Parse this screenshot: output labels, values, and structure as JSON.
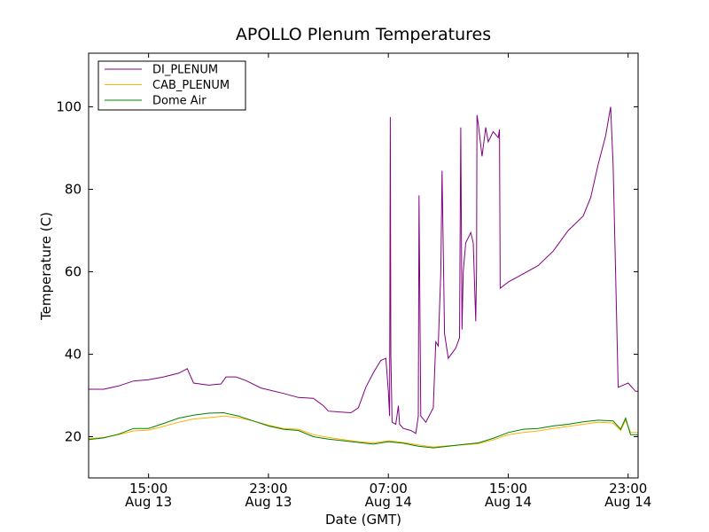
{
  "chart_data": {
    "type": "line",
    "title": "APOLLO Plenum Temperatures",
    "xlabel": "Date (GMT)",
    "ylabel": "Temperature (C)",
    "ylim": [
      10,
      113
    ],
    "xlim": [
      "Aug 13 11:00",
      "Aug 14 23:40"
    ],
    "grid": false,
    "legend_position": "upper-left",
    "yticks": [
      20,
      40,
      60,
      80,
      100
    ],
    "xticks": [
      {
        "x": "Aug 13 15:00",
        "time": "15:00",
        "date": "Aug 13"
      },
      {
        "x": "Aug 13 23:00",
        "time": "23:00",
        "date": "Aug 13"
      },
      {
        "x": "Aug 14 07:00",
        "time": "07:00",
        "date": "Aug 14"
      },
      {
        "x": "Aug 14 15:00",
        "time": "15:00",
        "date": "Aug 14"
      },
      {
        "x": "Aug 14 23:00",
        "time": "23:00",
        "date": "Aug 14"
      }
    ],
    "series": [
      {
        "name": "DI_PLENUM",
        "color": "#800080",
        "points": [
          [
            "Aug 13 11:00",
            31.5
          ],
          [
            "Aug 13 12:00",
            31.5
          ],
          [
            "Aug 13 13:00",
            32.3
          ],
          [
            "Aug 13 14:00",
            33.5
          ],
          [
            "Aug 13 15:00",
            33.8
          ],
          [
            "Aug 13 16:00",
            34.5
          ],
          [
            "Aug 13 17:00",
            35.4
          ],
          [
            "Aug 13 17:35",
            36.5
          ],
          [
            "Aug 13 18:00",
            33.0
          ],
          [
            "Aug 13 19:00",
            32.5
          ],
          [
            "Aug 13 19:50",
            32.8
          ],
          [
            "Aug 13 20:10",
            34.5
          ],
          [
            "Aug 13 20:50",
            34.5
          ],
          [
            "Aug 13 21:30",
            33.6
          ],
          [
            "Aug 13 22:30",
            31.8
          ],
          [
            "Aug 14 00:00",
            30.5
          ],
          [
            "Aug 14 01:00",
            29.5
          ],
          [
            "Aug 14 02:00",
            29.3
          ],
          [
            "Aug 14 02:40",
            27.5
          ],
          [
            "Aug 14 03:00",
            26.2
          ],
          [
            "Aug 14 04:30",
            25.8
          ],
          [
            "Aug 14 05:00",
            27.0
          ],
          [
            "Aug 14 05:30",
            32.0
          ],
          [
            "Aug 14 06:00",
            35.5
          ],
          [
            "Aug 14 06:30",
            38.5
          ],
          [
            "Aug 14 06:50",
            39.0
          ],
          [
            "Aug 14 07:00",
            31.0
          ],
          [
            "Aug 14 07:05",
            25.0
          ],
          [
            "Aug 14 07:08",
            97.5
          ],
          [
            "Aug 14 07:10",
            40.0
          ],
          [
            "Aug 14 07:15",
            23.5
          ],
          [
            "Aug 14 07:30",
            23.0
          ],
          [
            "Aug 14 07:40",
            27.5
          ],
          [
            "Aug 14 07:45",
            23.0
          ],
          [
            "Aug 14 08:00",
            22.0
          ],
          [
            "Aug 14 08:30",
            21.5
          ],
          [
            "Aug 14 08:50",
            20.8
          ],
          [
            "Aug 14 09:00",
            25.0
          ],
          [
            "Aug 14 09:03",
            78.5
          ],
          [
            "Aug 14 09:10",
            25.0
          ],
          [
            "Aug 14 09:30",
            23.5
          ],
          [
            "Aug 14 10:00",
            27.0
          ],
          [
            "Aug 14 10:10",
            43.0
          ],
          [
            "Aug 14 10:20",
            42.0
          ],
          [
            "Aug 14 10:30",
            60.0
          ],
          [
            "Aug 14 10:35",
            84.5
          ],
          [
            "Aug 14 10:45",
            45.0
          ],
          [
            "Aug 14 11:00",
            39.0
          ],
          [
            "Aug 14 11:30",
            41.5
          ],
          [
            "Aug 14 11:45",
            44.0
          ],
          [
            "Aug 14 11:50",
            95.0
          ],
          [
            "Aug 14 11:55",
            46.0
          ],
          [
            "Aug 14 12:00",
            60.0
          ],
          [
            "Aug 14 12:10",
            67.0
          ],
          [
            "Aug 14 12:30",
            69.5
          ],
          [
            "Aug 14 12:40",
            67.0
          ],
          [
            "Aug 14 12:50",
            48.0
          ],
          [
            "Aug 14 12:53",
            60.0
          ],
          [
            "Aug 14 12:55",
            98.0
          ],
          [
            "Aug 14 13:00",
            96.0
          ],
          [
            "Aug 14 13:15",
            88.0
          ],
          [
            "Aug 14 13:30",
            95.0
          ],
          [
            "Aug 14 13:40",
            91.5
          ],
          [
            "Aug 14 14:00",
            94.0
          ],
          [
            "Aug 14 14:20",
            92.5
          ],
          [
            "Aug 14 14:25",
            94.5
          ],
          [
            "Aug 14 14:28",
            56.0
          ],
          [
            "Aug 14 15:00",
            57.5
          ],
          [
            "Aug 14 16:00",
            59.5
          ],
          [
            "Aug 14 17:00",
            61.5
          ],
          [
            "Aug 14 18:00",
            65.0
          ],
          [
            "Aug 14 19:00",
            70.0
          ],
          [
            "Aug 14 20:00",
            73.5
          ],
          [
            "Aug 14 20:30",
            78.0
          ],
          [
            "Aug 14 21:00",
            86.0
          ],
          [
            "Aug 14 21:30",
            93.0
          ],
          [
            "Aug 14 21:50",
            100.0
          ],
          [
            "Aug 14 22:00",
            86.0
          ],
          [
            "Aug 14 22:10",
            60.0
          ],
          [
            "Aug 14 22:20",
            32.0
          ],
          [
            "Aug 14 22:40",
            32.5
          ],
          [
            "Aug 14 23:00",
            33.0
          ],
          [
            "Aug 14 23:30",
            31.0
          ],
          [
            "Aug 14 23:40",
            31.0
          ]
        ]
      },
      {
        "name": "CAB_PLENUM",
        "color": "#ffb000",
        "points": [
          [
            "Aug 13 11:00",
            19.5
          ],
          [
            "Aug 13 12:00",
            19.8
          ],
          [
            "Aug 13 13:00",
            20.5
          ],
          [
            "Aug 13 14:00",
            21.4
          ],
          [
            "Aug 13 15:00",
            21.6
          ],
          [
            "Aug 13 16:00",
            22.5
          ],
          [
            "Aug 13 17:00",
            23.5
          ],
          [
            "Aug 13 18:00",
            24.3
          ],
          [
            "Aug 13 19:00",
            24.6
          ],
          [
            "Aug 13 20:00",
            25.0
          ],
          [
            "Aug 13 21:00",
            24.6
          ],
          [
            "Aug 13 22:00",
            23.8
          ],
          [
            "Aug 13 23:00",
            22.8
          ],
          [
            "Aug 14 00:00",
            22.0
          ],
          [
            "Aug 14 01:00",
            21.8
          ],
          [
            "Aug 14 02:00",
            20.5
          ],
          [
            "Aug 14 03:00",
            19.8
          ],
          [
            "Aug 14 04:00",
            19.3
          ],
          [
            "Aug 14 05:00",
            18.8
          ],
          [
            "Aug 14 06:00",
            18.5
          ],
          [
            "Aug 14 07:00",
            19.0
          ],
          [
            "Aug 14 08:00",
            18.6
          ],
          [
            "Aug 14 09:00",
            18.0
          ],
          [
            "Aug 14 10:00",
            17.5
          ],
          [
            "Aug 14 11:00",
            17.8
          ],
          [
            "Aug 14 12:00",
            18.0
          ],
          [
            "Aug 14 13:00",
            18.3
          ],
          [
            "Aug 14 14:00",
            19.2
          ],
          [
            "Aug 14 15:00",
            20.5
          ],
          [
            "Aug 14 16:00",
            21.0
          ],
          [
            "Aug 14 17:00",
            21.4
          ],
          [
            "Aug 14 18:00",
            22.0
          ],
          [
            "Aug 14 19:00",
            22.5
          ],
          [
            "Aug 14 20:00",
            23.0
          ],
          [
            "Aug 14 21:00",
            23.5
          ],
          [
            "Aug 14 22:00",
            23.3
          ],
          [
            "Aug 14 22:30",
            21.5
          ],
          [
            "Aug 14 22:50",
            24.0
          ],
          [
            "Aug 14 23:10",
            21.0
          ],
          [
            "Aug 14 23:40",
            21.0
          ]
        ]
      },
      {
        "name": "Dome Air",
        "color": "#008000",
        "points": [
          [
            "Aug 13 11:00",
            19.3
          ],
          [
            "Aug 13 12:00",
            19.7
          ],
          [
            "Aug 13 13:00",
            20.6
          ],
          [
            "Aug 13 14:00",
            22.0
          ],
          [
            "Aug 13 15:00",
            22.0
          ],
          [
            "Aug 13 16:00",
            23.2
          ],
          [
            "Aug 13 17:00",
            24.5
          ],
          [
            "Aug 13 18:00",
            25.2
          ],
          [
            "Aug 13 19:00",
            25.7
          ],
          [
            "Aug 13 20:00",
            25.8
          ],
          [
            "Aug 13 21:00",
            25.0
          ],
          [
            "Aug 13 22:00",
            23.8
          ],
          [
            "Aug 13 23:00",
            22.6
          ],
          [
            "Aug 14 00:00",
            21.8
          ],
          [
            "Aug 14 01:00",
            21.5
          ],
          [
            "Aug 14 02:00",
            20.0
          ],
          [
            "Aug 14 03:00",
            19.4
          ],
          [
            "Aug 14 04:00",
            19.0
          ],
          [
            "Aug 14 05:00",
            18.6
          ],
          [
            "Aug 14 06:00",
            18.2
          ],
          [
            "Aug 14 07:00",
            18.8
          ],
          [
            "Aug 14 08:00",
            18.4
          ],
          [
            "Aug 14 09:00",
            17.7
          ],
          [
            "Aug 14 10:00",
            17.3
          ],
          [
            "Aug 14 11:00",
            17.7
          ],
          [
            "Aug 14 12:00",
            18.1
          ],
          [
            "Aug 14 13:00",
            18.5
          ],
          [
            "Aug 14 14:00",
            19.6
          ],
          [
            "Aug 14 15:00",
            21.0
          ],
          [
            "Aug 14 16:00",
            21.8
          ],
          [
            "Aug 14 17:00",
            22.0
          ],
          [
            "Aug 14 18:00",
            22.6
          ],
          [
            "Aug 14 19:00",
            23.0
          ],
          [
            "Aug 14 20:00",
            23.6
          ],
          [
            "Aug 14 21:00",
            24.0
          ],
          [
            "Aug 14 22:00",
            23.8
          ],
          [
            "Aug 14 22:30",
            21.8
          ],
          [
            "Aug 14 22:50",
            24.5
          ],
          [
            "Aug 14 23:10",
            20.5
          ],
          [
            "Aug 14 23:40",
            20.5
          ]
        ]
      }
    ]
  }
}
